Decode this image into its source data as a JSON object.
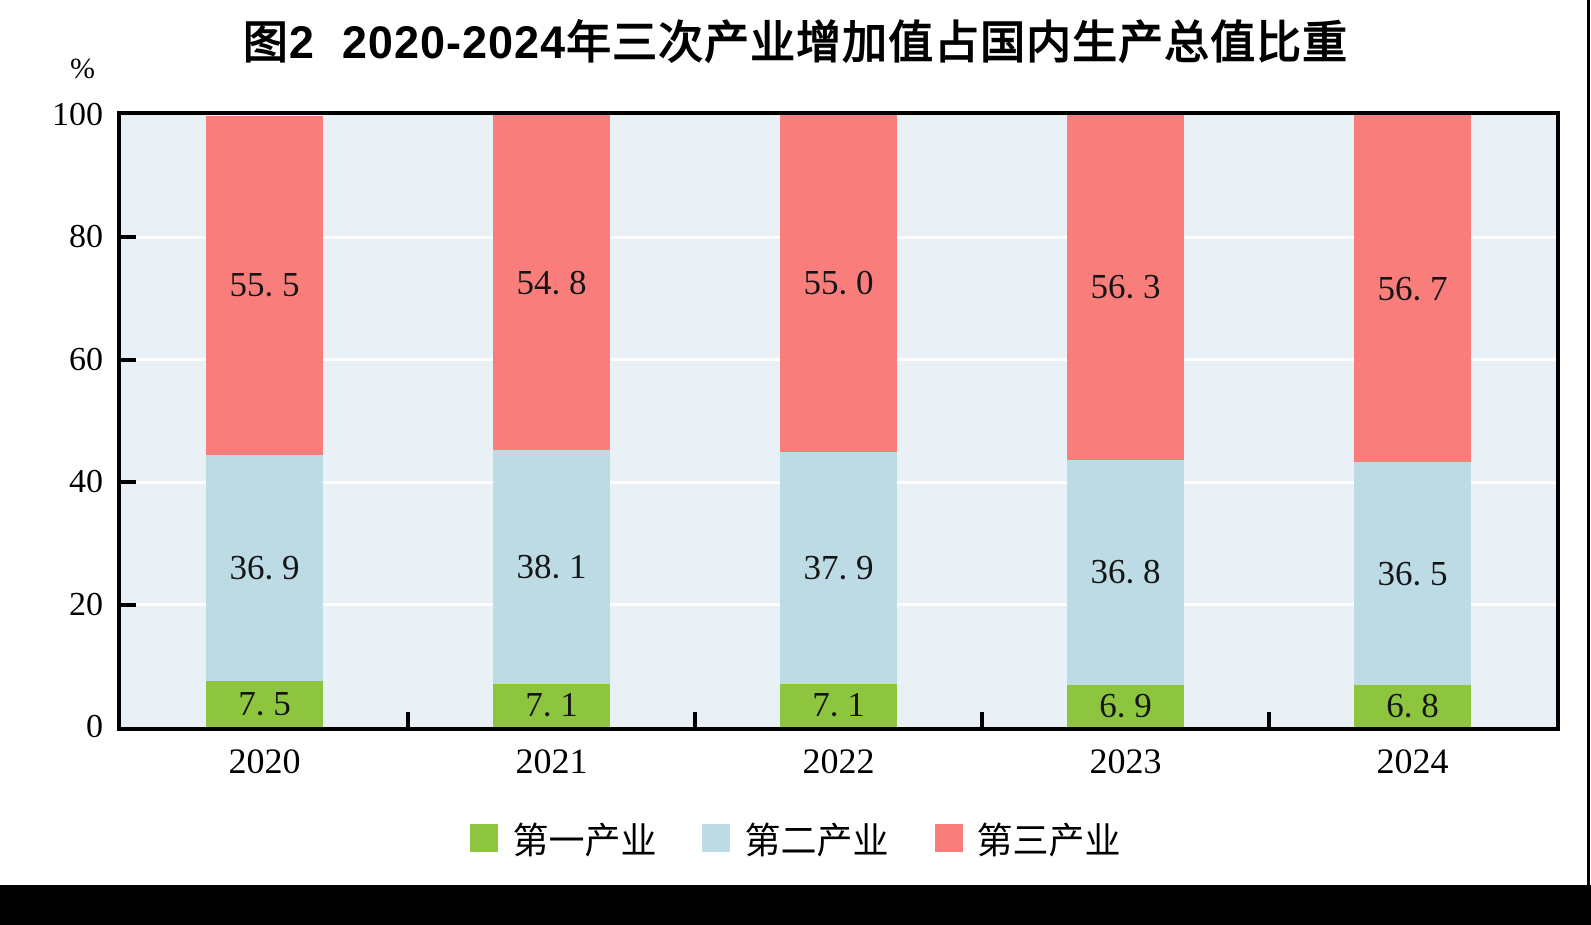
{
  "chart_data": {
    "type": "bar",
    "stacked": true,
    "title": "图2  2020-2024年三次产业增加值占国内生产总值比重",
    "y_unit_label": "%",
    "xlabel": "",
    "ylabel": "%",
    "ylim": [
      0,
      100
    ],
    "yticks": [
      0,
      20,
      40,
      60,
      80,
      100
    ],
    "grid": "horizontal",
    "legend_position": "bottom",
    "categories": [
      "2020",
      "2021",
      "2022",
      "2023",
      "2024"
    ],
    "series": [
      {
        "name": "第一产业",
        "color": "#8dc53e",
        "values": [
          7.5,
          7.1,
          7.1,
          6.9,
          6.8
        ],
        "labels": [
          "7. 5",
          "7. 1",
          "7. 1",
          "6. 9",
          "6. 8"
        ]
      },
      {
        "name": "第二产业",
        "color": "#bcdbe4",
        "values": [
          36.9,
          38.1,
          37.9,
          36.8,
          36.5
        ],
        "labels": [
          "36. 9",
          "38. 1",
          "37. 9",
          "36. 8",
          "36. 5"
        ]
      },
      {
        "name": "第三产业",
        "color": "#f97d7b",
        "values": [
          55.5,
          54.8,
          55.0,
          56.3,
          56.7
        ],
        "labels": [
          "55. 5",
          "54. 8",
          "55. 0",
          "56. 3",
          "56. 7"
        ]
      }
    ]
  },
  "colors": {
    "plot_background": "#eaf1f6",
    "gridline": "#ffffff",
    "axis_border": "#000000",
    "text": "#000000",
    "page_bottom_bar": "#000000"
  }
}
